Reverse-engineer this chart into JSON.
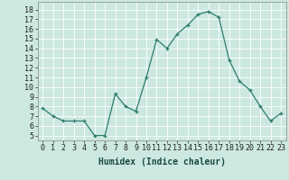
{
  "x": [
    0,
    1,
    2,
    3,
    4,
    5,
    6,
    7,
    8,
    9,
    10,
    11,
    12,
    13,
    14,
    15,
    16,
    17,
    18,
    19,
    20,
    21,
    22,
    23
  ],
  "y": [
    7.8,
    7.0,
    6.5,
    6.5,
    6.5,
    5.0,
    5.0,
    9.3,
    8.0,
    7.5,
    11.0,
    14.9,
    14.0,
    15.5,
    16.4,
    17.5,
    17.8,
    17.2,
    12.8,
    10.6,
    9.7,
    8.0,
    6.5,
    7.3
  ],
  "line_color": "#2d7d6e",
  "marker": "+",
  "marker_size": 3,
  "bg_color": "#cce8e0",
  "grid_color": "#ffffff",
  "xlabel": "Humidex (Indice chaleur)",
  "ylabel_ticks": [
    5,
    6,
    7,
    8,
    9,
    10,
    11,
    12,
    13,
    14,
    15,
    16,
    17,
    18
  ],
  "ylim": [
    4.5,
    18.8
  ],
  "xlim": [
    -0.5,
    23.5
  ],
  "axis_fontsize": 6,
  "label_fontsize": 7
}
